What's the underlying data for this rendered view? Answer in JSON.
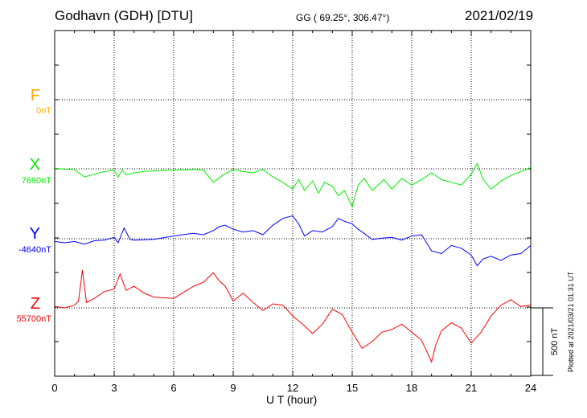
{
  "header": {
    "station": "Godhavn (GDH)  [DTU]",
    "coords": "GG ( 69.25°, 306.47°)",
    "date": "2021/02/19"
  },
  "footer": {
    "plotted": "Plotted at 2021/03/21 01:31 UT"
  },
  "chart_data": {
    "type": "line",
    "xlabel": "U T (hour)",
    "xlim": [
      0,
      24
    ],
    "xticks": [
      0,
      3,
      6,
      9,
      12,
      15,
      18,
      21,
      24
    ],
    "scale_bar": "500 nT",
    "scale_bar_value_nT": 500,
    "grid": true,
    "colors": {
      "F": "#ffaa00",
      "X": "#00ee00",
      "Y": "#0000ff",
      "Z": "#ff0000"
    },
    "components": [
      {
        "name": "F",
        "base": "0nT",
        "x": [],
        "y": []
      },
      {
        "name": "X",
        "base": "7690nT",
        "x": [
          0,
          0.5,
          1,
          1.2,
          1.5,
          2,
          2.5,
          3,
          3.2,
          3.4,
          3.6,
          4,
          4.5,
          5,
          6,
          7,
          7.5,
          8,
          8.5,
          9,
          9.5,
          10,
          10.5,
          11,
          11.5,
          12,
          12.3,
          12.6,
          13,
          13.3,
          13.6,
          14,
          14.3,
          14.6,
          15,
          15.3,
          15.6,
          16,
          16.3,
          16.6,
          17,
          17.5,
          18,
          18.5,
          19,
          19.5,
          20,
          20.5,
          21,
          21.3,
          21.6,
          22,
          22.5,
          23,
          23.5,
          24
        ],
        "y": [
          5,
          -3,
          -5,
          -30,
          -60,
          -40,
          -20,
          -10,
          -60,
          -10,
          -45,
          -30,
          -20,
          -15,
          -10,
          -5,
          -10,
          -100,
          -45,
          -5,
          -20,
          -30,
          -5,
          -60,
          -100,
          -150,
          -80,
          -160,
          -90,
          -180,
          -100,
          -130,
          -200,
          -160,
          -280,
          -120,
          -70,
          -160,
          -120,
          -80,
          -150,
          -70,
          -120,
          -80,
          -30,
          -80,
          -100,
          -120,
          -40,
          40,
          -80,
          -150,
          -90,
          -50,
          -20,
          10
        ]
      },
      {
        "name": "Y",
        "base": "-4640nT",
        "x": [
          0,
          0.5,
          1,
          1.5,
          2,
          2.5,
          3,
          3.2,
          3.5,
          3.8,
          4,
          5,
          6,
          7,
          7.5,
          8,
          8.3,
          8.6,
          9,
          9.5,
          10,
          10.5,
          11,
          11.5,
          12,
          12.3,
          12.6,
          13,
          13.5,
          14,
          14.3,
          14.6,
          15,
          15.3,
          15.6,
          16,
          16.5,
          17,
          17.5,
          18,
          18.5,
          19,
          19.5,
          20,
          20.5,
          21,
          21.3,
          21.6,
          22,
          22.5,
          23,
          23.5,
          24
        ],
        "y": [
          -20,
          -30,
          -20,
          -40,
          -15,
          -10,
          10,
          -30,
          80,
          -5,
          -10,
          -5,
          20,
          40,
          30,
          60,
          90,
          100,
          70,
          50,
          60,
          30,
          100,
          150,
          170,
          110,
          20,
          60,
          50,
          90,
          150,
          130,
          110,
          70,
          40,
          -5,
          5,
          10,
          -10,
          20,
          30,
          -90,
          -110,
          -50,
          -70,
          -120,
          -200,
          -150,
          -130,
          -160,
          -120,
          -110,
          -50
        ]
      },
      {
        "name": "Z",
        "base": "55700nT",
        "x": [
          0,
          0.5,
          1,
          1.2,
          1.4,
          1.6,
          2,
          2.5,
          3,
          3.3,
          3.6,
          4,
          4.5,
          5,
          6,
          7,
          7.5,
          8,
          8.3,
          8.6,
          9,
          9.5,
          10,
          10.5,
          11,
          11.5,
          12,
          12.5,
          13,
          13.5,
          14,
          14.5,
          15,
          15.5,
          16,
          16.5,
          17,
          17.5,
          18,
          18.5,
          19,
          19.2,
          19.5,
          20,
          20.5,
          21,
          21.5,
          22,
          22.5,
          23,
          23.5,
          24
        ],
        "y": [
          10,
          0,
          20,
          50,
          280,
          40,
          70,
          120,
          140,
          250,
          130,
          160,
          110,
          80,
          70,
          160,
          190,
          260,
          200,
          160,
          50,
          110,
          40,
          -20,
          30,
          20,
          -60,
          -120,
          -190,
          -120,
          -10,
          -50,
          -180,
          -300,
          -250,
          -180,
          -160,
          -120,
          -180,
          -240,
          -400,
          -280,
          -170,
          -110,
          -150,
          -260,
          -180,
          -60,
          20,
          60,
          10,
          20
        ]
      }
    ]
  }
}
